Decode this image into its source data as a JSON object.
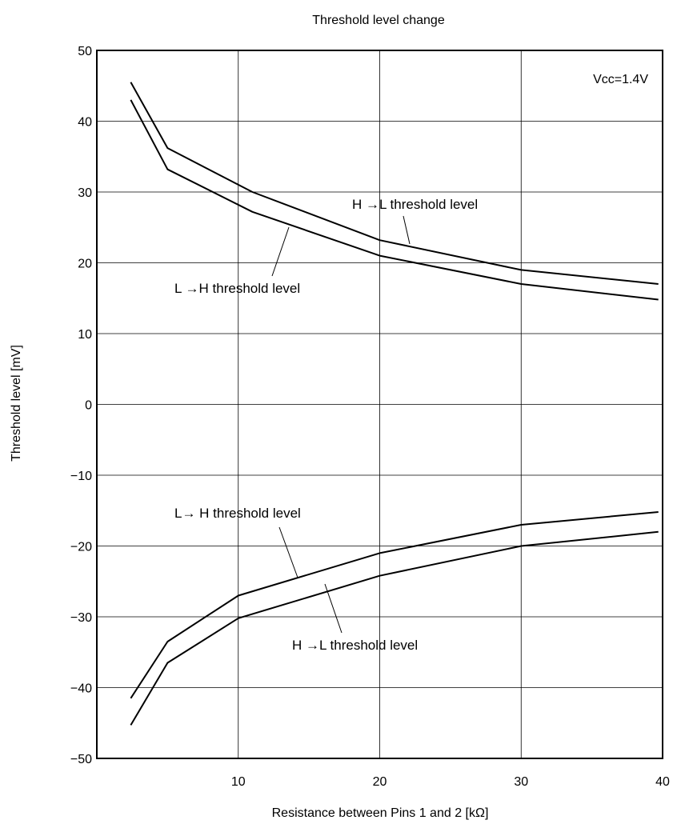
{
  "chart_data": {
    "type": "line",
    "title": "Threshold level change",
    "xlabel": "Resistance between Pins 1 and 2 [kΩ]",
    "ylabel": "Threshold level [mV]",
    "xlim": [
      0,
      40
    ],
    "ylim": [
      -50,
      50
    ],
    "x_ticks": [
      10,
      20,
      30,
      40
    ],
    "x_tick_labels": [
      "10",
      "20",
      "30",
      "40"
    ],
    "y_ticks": [
      50,
      40,
      30,
      20,
      10,
      0,
      -10,
      -20,
      -30,
      -40,
      -50
    ],
    "y_tick_labels": [
      "50",
      "40",
      "30",
      "20",
      "10",
      "0",
      "−10",
      "−20",
      "−30",
      "−40",
      "−50"
    ],
    "grid": true,
    "annotation": "Vcc=1.4V",
    "series": [
      {
        "name": "H →L threshold level",
        "x": [
          2.4,
          5,
          11,
          20,
          30,
          39.7
        ],
        "y": [
          45.5,
          36.2,
          30,
          23.2,
          19,
          17
        ]
      },
      {
        "name": "L →H threshold level",
        "x": [
          2.4,
          5,
          11,
          20,
          30,
          39.7
        ],
        "y": [
          43,
          33.2,
          27.2,
          21,
          17,
          14.8
        ]
      },
      {
        "name": "L→ H threshold level",
        "x": [
          2.4,
          5,
          10,
          20,
          30,
          39.7
        ],
        "y": [
          -41.5,
          -33.5,
          -27,
          -21,
          -17,
          -15.2
        ]
      },
      {
        "name": "H →L threshold level",
        "x": [
          2.4,
          5,
          10,
          20,
          30,
          39.7
        ],
        "y": [
          -45.3,
          -36.5,
          -30.2,
          -24.2,
          -20,
          -18
        ]
      }
    ],
    "series_labels": [
      {
        "text": "H →L threshold level",
        "series": 0
      },
      {
        "text": "L →H threshold level",
        "series": 1
      },
      {
        "text": "L→ H threshold level",
        "series": 2
      },
      {
        "text": "H →L threshold level",
        "series": 3
      }
    ],
    "line_color": "#000000",
    "grid_color": "#000000"
  }
}
